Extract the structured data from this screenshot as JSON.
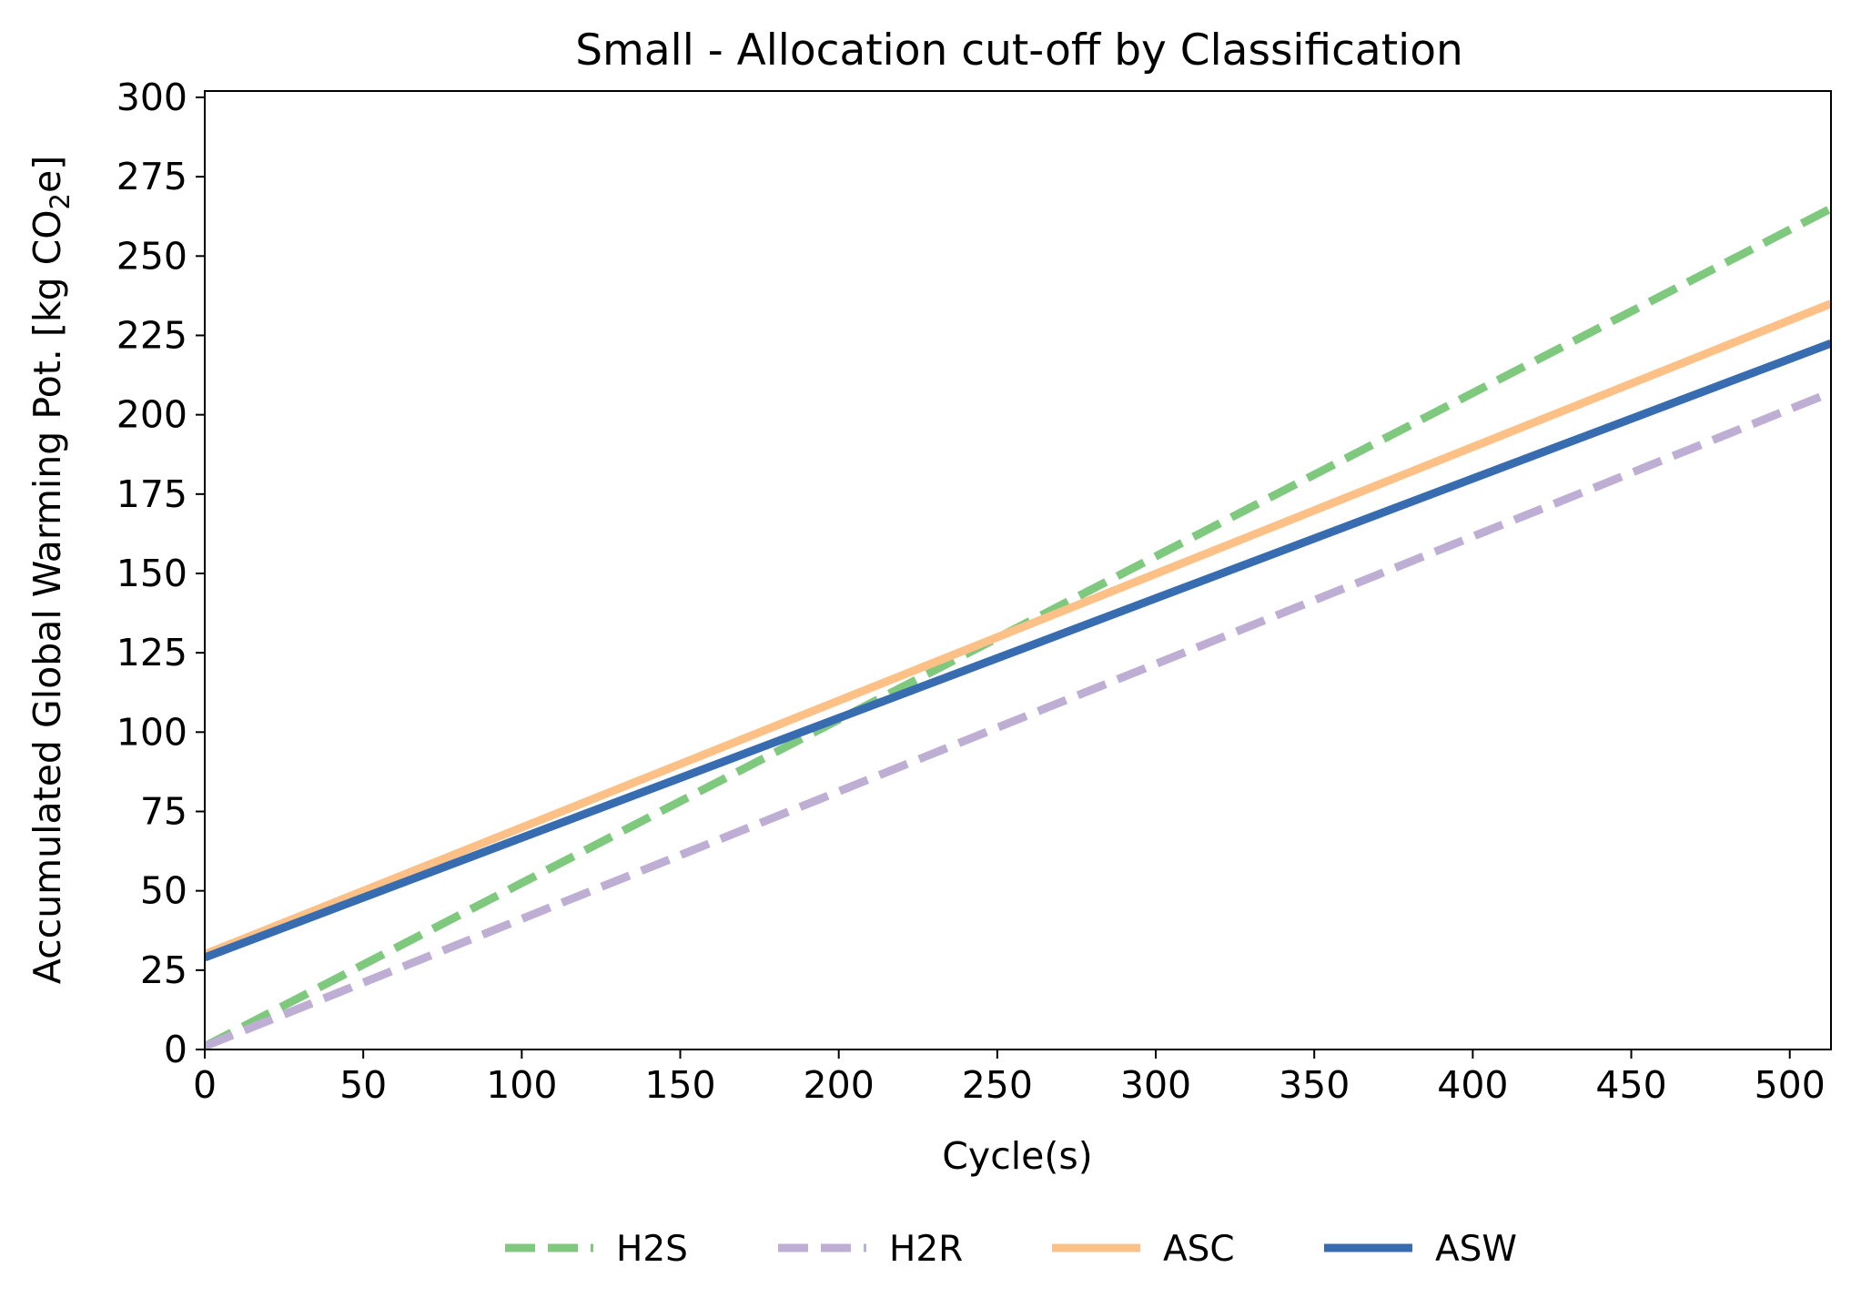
{
  "chart_data": {
    "type": "line",
    "title": "Small - Allocation cut-off by Classification",
    "xlabel": "Cycle(s)",
    "ylabel": {
      "prefix": "Accumulated Global Warming Pot. [kg CO",
      "subscript": "2",
      "suffix": "e]"
    },
    "xlim": [
      0,
      513
    ],
    "ylim": [
      0,
      302
    ],
    "xticks": [
      0,
      50,
      100,
      150,
      200,
      250,
      300,
      350,
      400,
      450,
      500
    ],
    "yticks": [
      0,
      25,
      50,
      75,
      100,
      125,
      150,
      175,
      200,
      225,
      250,
      275,
      300
    ],
    "grid": false,
    "legend_position": "bottom-center",
    "series": [
      {
        "name": "H2S",
        "color": "#7fc97f",
        "line_style": "dashed",
        "x": [
          0,
          513
        ],
        "y": [
          1,
          265
        ]
      },
      {
        "name": "H2R",
        "color": "#beaed4",
        "line_style": "dashed",
        "x": [
          0,
          513
        ],
        "y": [
          1,
          207
        ]
      },
      {
        "name": "ASC",
        "color": "#fdc086",
        "line_style": "solid",
        "x": [
          0,
          513
        ],
        "y": [
          30,
          235
        ]
      },
      {
        "name": "ASW",
        "color": "#386cb0",
        "line_style": "solid",
        "x": [
          0,
          513
        ],
        "y": [
          29,
          222.5
        ]
      }
    ]
  }
}
